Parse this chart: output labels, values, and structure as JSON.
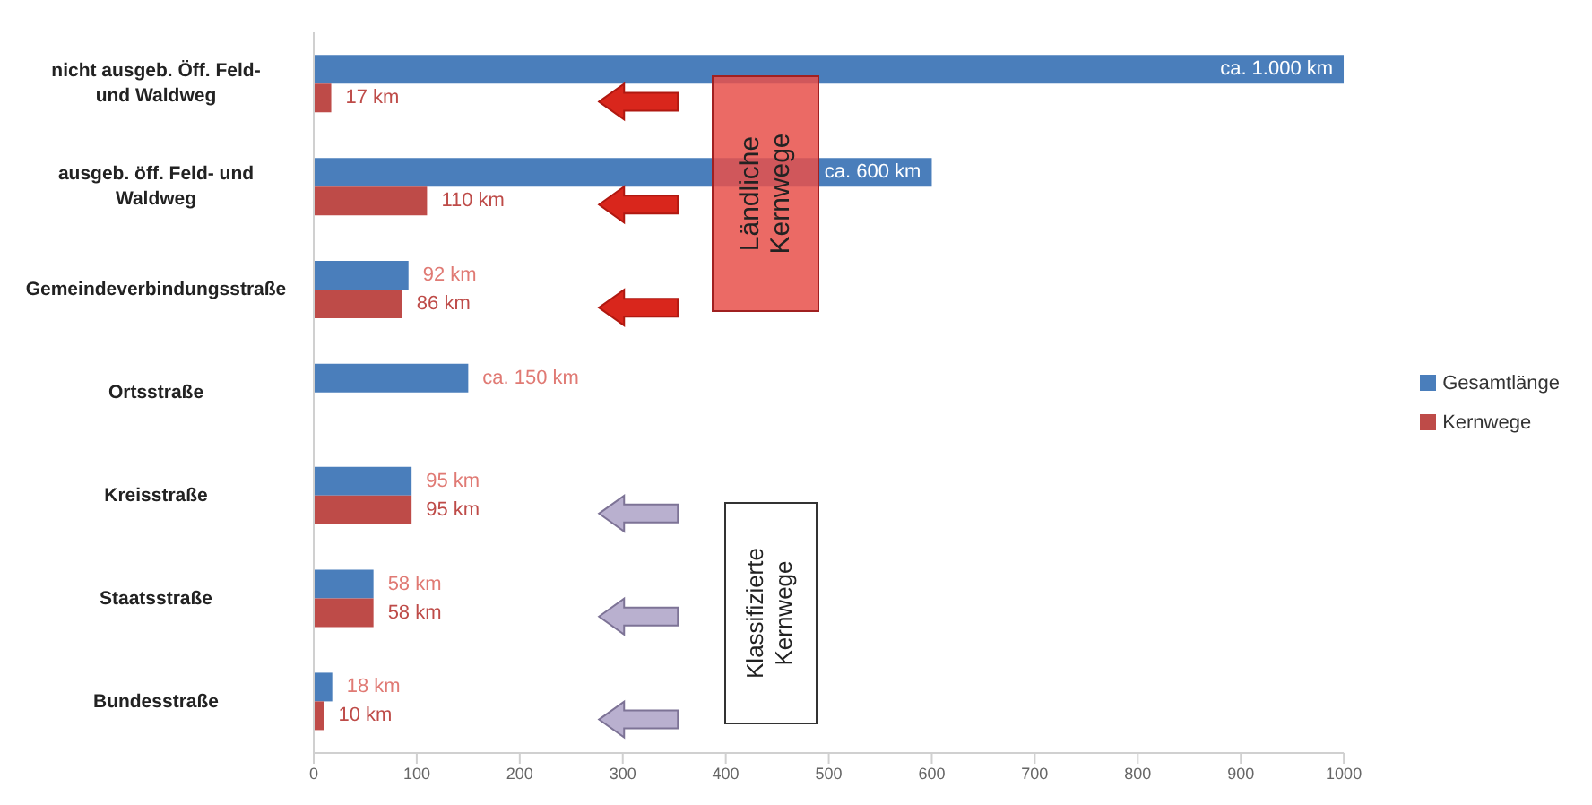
{
  "chart_data": {
    "type": "bar",
    "orientation": "horizontal",
    "categories": [
      "nicht ausgeb. Öff. Feld- und Waldweg",
      "ausgeb. öff. Feld- und Waldweg",
      "Gemeindeverbindungsstraße",
      "Ortsstraße",
      "Kreisstraße",
      "Staatsstraße",
      "Bundesstraße"
    ],
    "series": [
      {
        "name": "Gesamtlänge",
        "color": "#4a7ebb",
        "values": [
          1000,
          600,
          92,
          150,
          95,
          58,
          18
        ],
        "value_labels": [
          "ca. 1.000 km",
          "ca. 600 km",
          "92 km",
          "ca. 150 km",
          "95 km",
          "58 km",
          "18 km"
        ]
      },
      {
        "name": "Kernwege",
        "color": "#be4b48",
        "values": [
          17,
          110,
          86,
          null,
          95,
          58,
          10
        ],
        "value_labels": [
          "17 km",
          "110 km",
          "86 km",
          null,
          "95 km",
          "58 km",
          "10 km"
        ]
      }
    ],
    "xlim": [
      0,
      1000
    ],
    "xticks": [
      0,
      100,
      200,
      300,
      400,
      500,
      600,
      700,
      800,
      900,
      1000
    ],
    "grid": false,
    "legend": "right",
    "annotations": [
      "Ländliche Kernwege",
      "Klassifizierte Kernwege"
    ]
  }
}
